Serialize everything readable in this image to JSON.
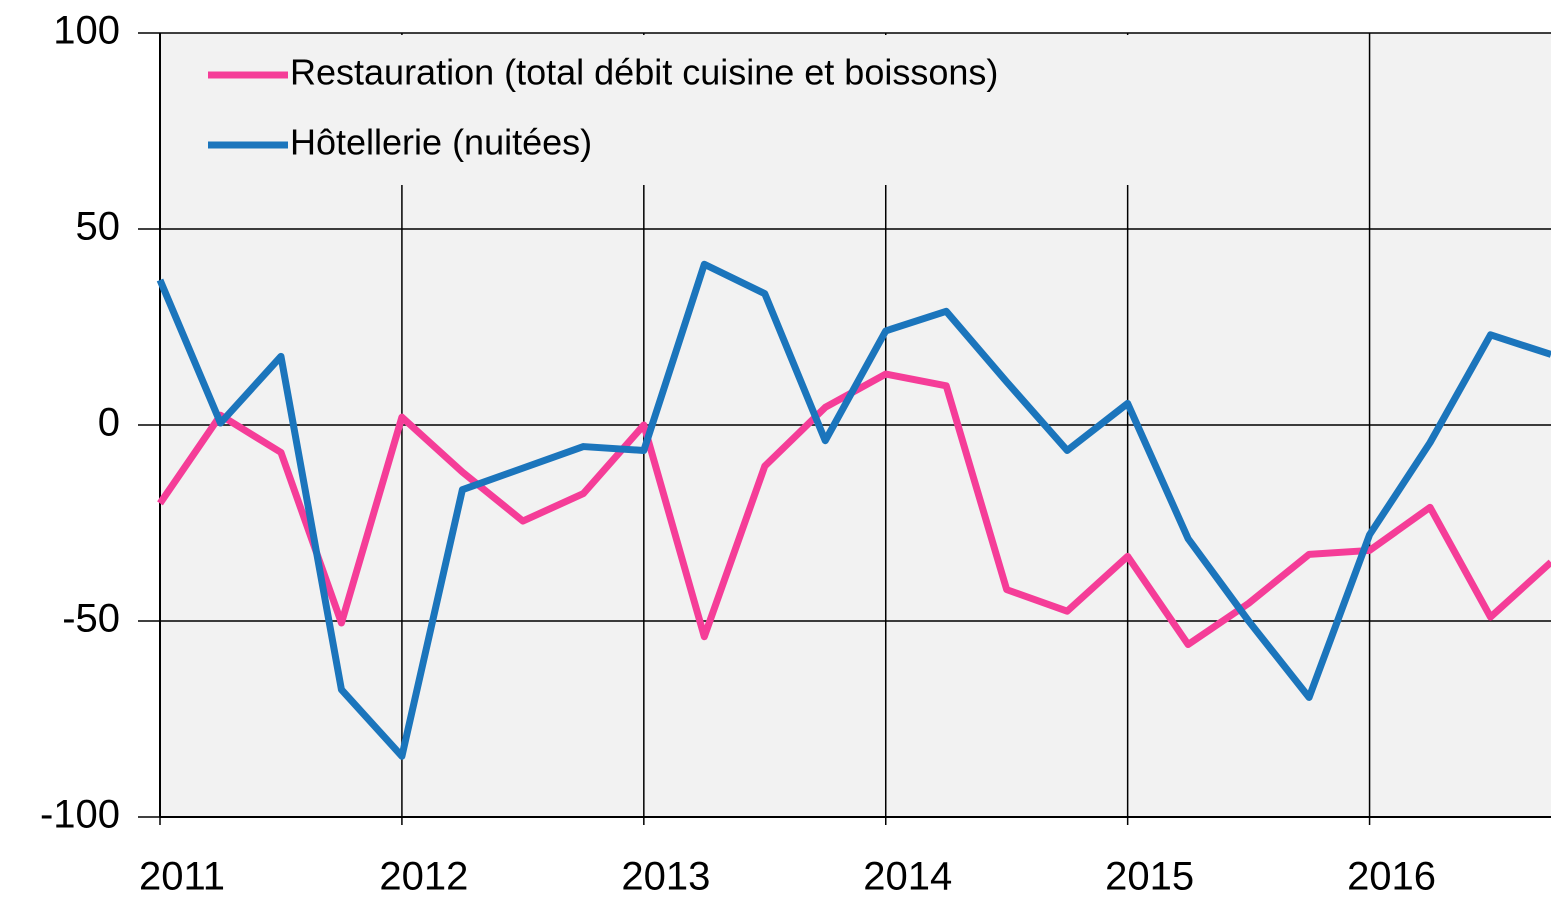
{
  "chart_data": {
    "type": "line",
    "x": [
      2011,
      2011.25,
      2011.5,
      2011.75,
      2012,
      2012.25,
      2012.5,
      2012.75,
      2013,
      2013.25,
      2013.5,
      2013.75,
      2014,
      2014.25,
      2014.5,
      2014.75,
      2015,
      2015.25,
      2015.5,
      2015.75,
      2016,
      2016.25,
      2016.5,
      2016.75
    ],
    "series": [
      {
        "name": "Restauration (total débit cuisine et boissons)",
        "color": "#f53d98",
        "values": [
          -20,
          2.5,
          -7,
          -50.5,
          2,
          -12,
          -24.5,
          -17.5,
          0,
          -54,
          -10.5,
          4.5,
          13,
          10,
          -42,
          -47.5,
          -33.5,
          -56,
          -45.5,
          -33,
          -32,
          -21,
          -49,
          -35
        ]
      },
      {
        "name": "Hôtellerie (nuitées)",
        "color": "#1b75bc",
        "values": [
          37,
          0.5,
          17.5,
          -67.5,
          -84.5,
          -16.5,
          -11,
          -5.5,
          -6.5,
          41,
          33.5,
          -4,
          24,
          29,
          11,
          -6.5,
          5.5,
          -29,
          -50,
          -69.5,
          -28,
          -4.5,
          23,
          18
        ]
      }
    ],
    "xlim": [
      2011,
      2016.75
    ],
    "xticks": [
      2011,
      2012,
      2013,
      2014,
      2015,
      2016
    ],
    "ylim": [
      -100,
      100
    ],
    "yticks": [
      -100,
      -50,
      0,
      50,
      100
    ],
    "grid": true,
    "legend": "upper left"
  }
}
